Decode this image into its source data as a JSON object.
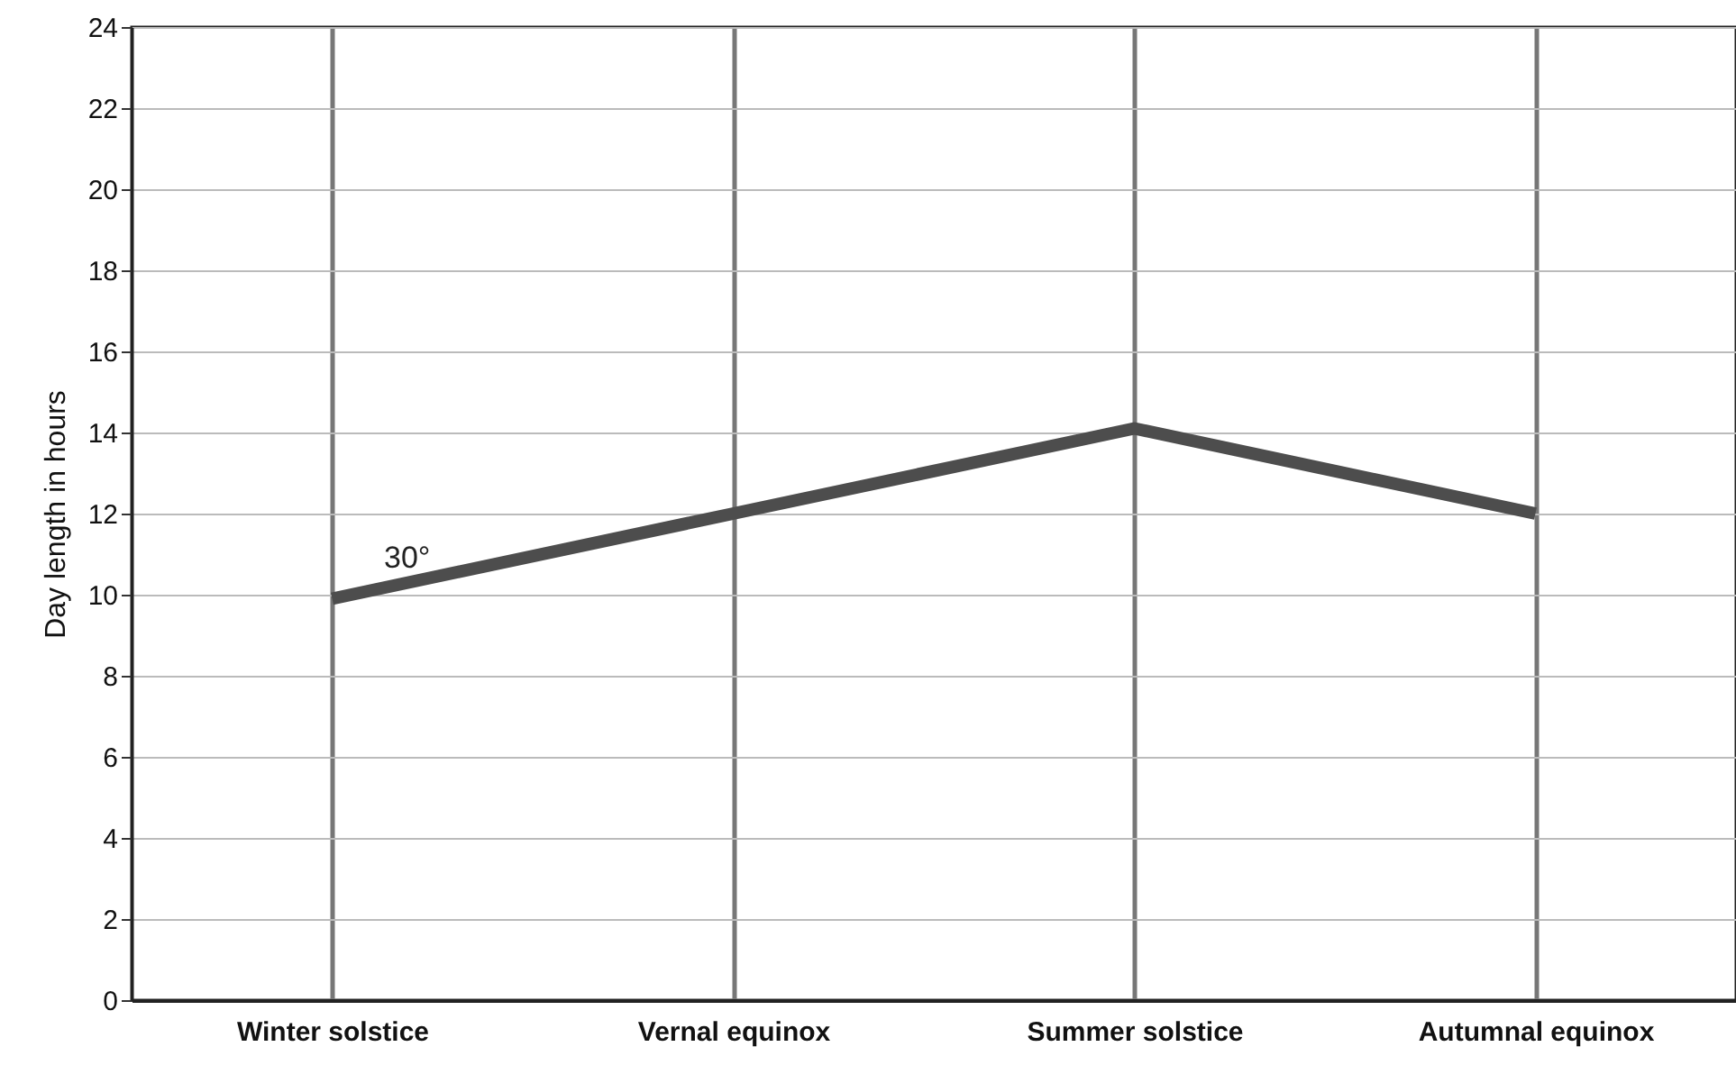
{
  "chart_data": {
    "type": "line",
    "ylabel": "Day length in hours",
    "categories": [
      "Winter solstice",
      "Vernal equinox",
      "Summer solstice",
      "Autumnal equinox"
    ],
    "values": [
      9.9,
      12,
      14.1,
      12
    ],
    "color": "#4d4d4d",
    "ylim": [
      0,
      24
    ],
    "yticks": [
      0,
      2,
      4,
      6,
      8,
      10,
      12,
      14,
      16,
      18,
      20,
      22,
      24
    ],
    "grid": true,
    "marker": "none",
    "line_style": "solid",
    "annotations": [
      "30°"
    ]
  }
}
